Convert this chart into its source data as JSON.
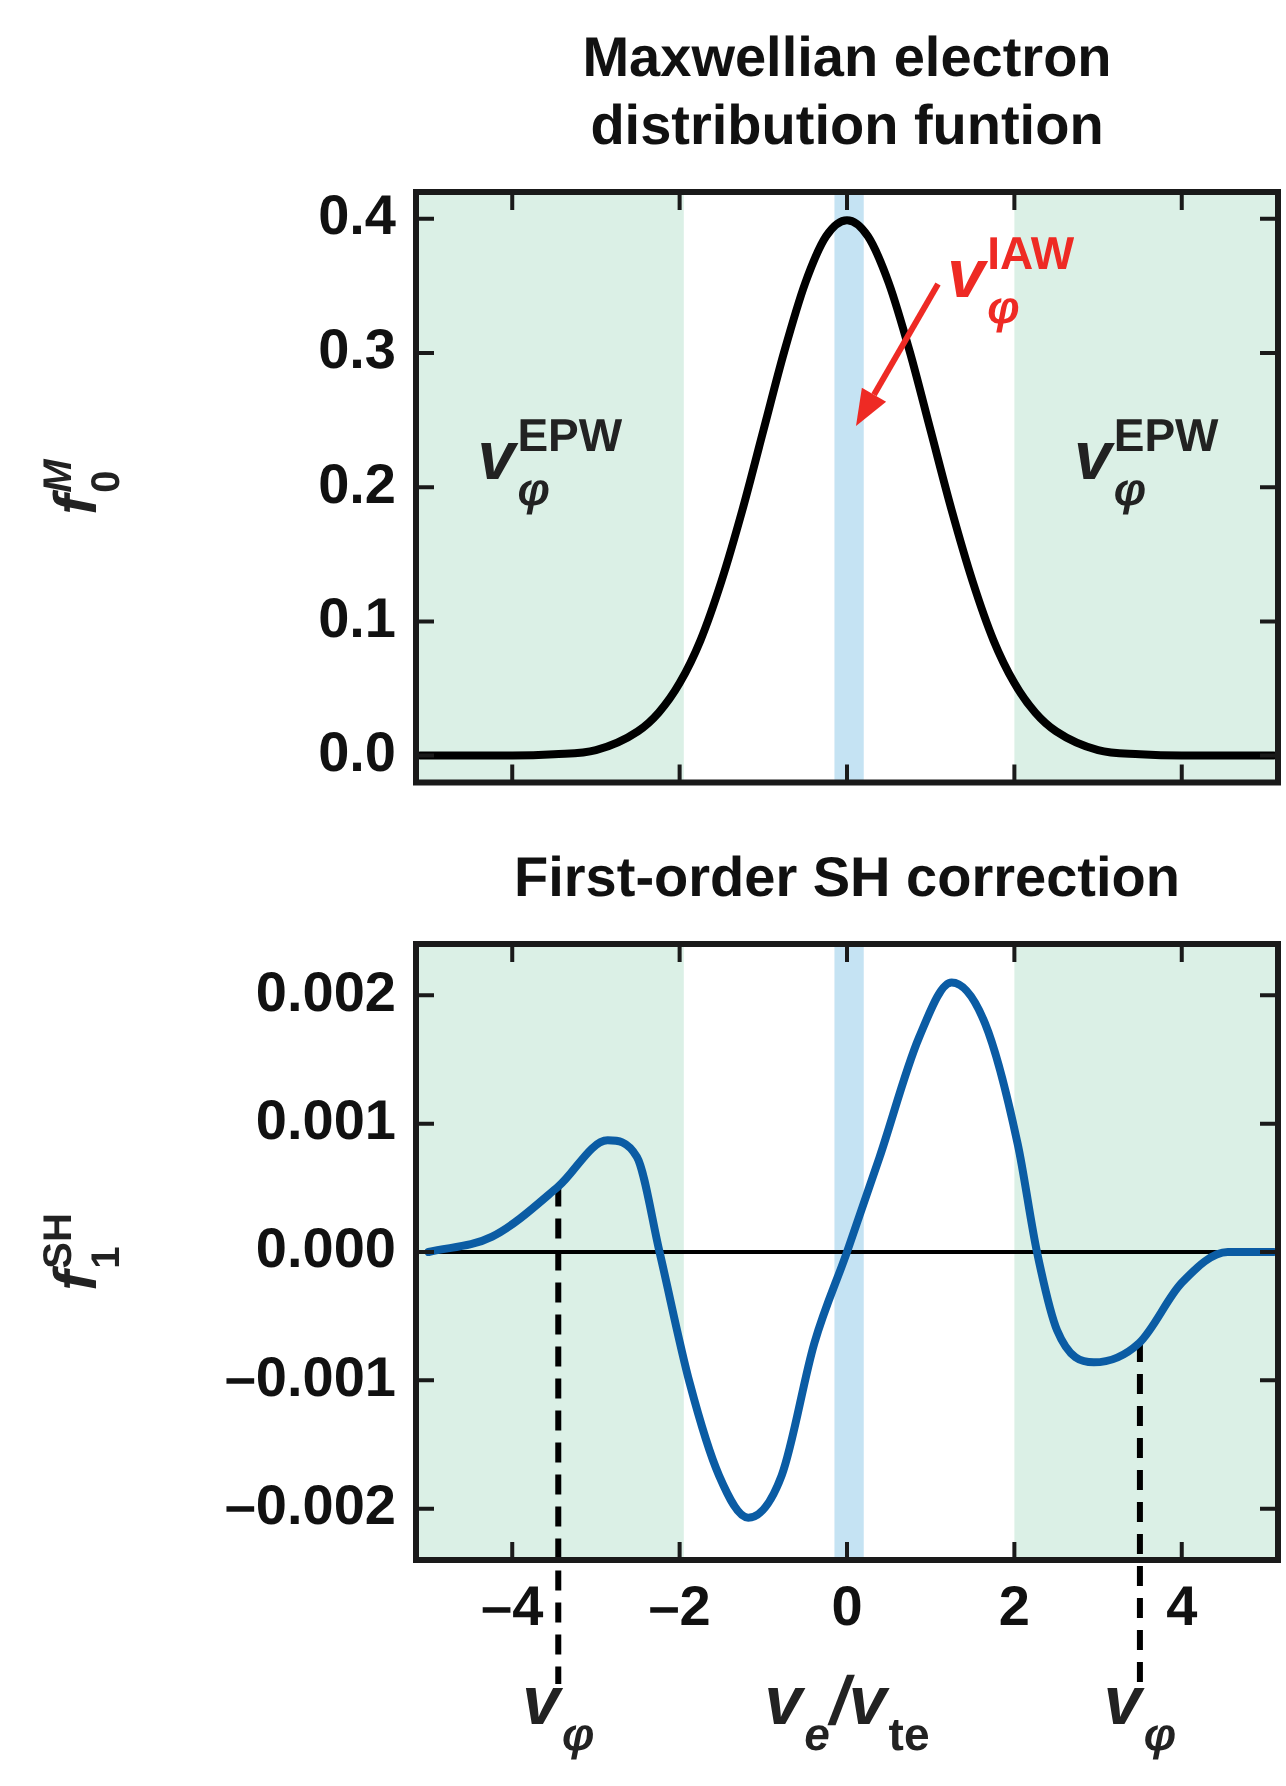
{
  "chart_data": [
    {
      "type": "line",
      "title": "Maxwellian electron distribution funtion",
      "ylabel": "f$_{0}$$^{M}$",
      "x": [
        -5.1,
        -4.5,
        -4,
        -3.5,
        -3,
        -2.5,
        -2.25,
        -2,
        -1.75,
        -1.5,
        -1.25,
        -1,
        -0.75,
        -0.5,
        -0.25,
        0,
        0.25,
        0.5,
        0.75,
        1,
        1.25,
        1.5,
        1.75,
        2,
        2.25,
        2.5,
        3,
        3.5,
        4,
        4.5,
        5.1
      ],
      "series": [
        {
          "color": "#000000",
          "values": [
            0,
            0,
            0,
            0.001,
            0.004,
            0.018,
            0.032,
            0.054,
            0.086,
            0.13,
            0.183,
            0.242,
            0.301,
            0.352,
            0.387,
            0.399,
            0.387,
            0.352,
            0.301,
            0.242,
            0.183,
            0.13,
            0.086,
            0.054,
            0.032,
            0.018,
            0.004,
            0.001,
            0,
            0,
            0
          ]
        }
      ],
      "xlim": [
        -5.15,
        5.15
      ],
      "ylim": [
        -0.02,
        0.42
      ],
      "xticks": [
        -4,
        -2,
        0,
        2,
        4
      ],
      "yticks": [
        {
          "value": 0,
          "label": "0.0"
        },
        0.1,
        0.2,
        0.3,
        0.4
      ],
      "tick_labels": "y",
      "bands": [
        {
          "axis": "x",
          "from": -5.15,
          "to": -1.95,
          "label": "v$_{φ}$$^{EPW}$",
          "color": "#dbf0e6"
        },
        {
          "axis": "x",
          "from": 2.0,
          "to": 5.15,
          "label": "v$_{φ}$$^{EPW}$",
          "color": "#dbf0e6"
        },
        {
          "axis": "x",
          "from": -0.15,
          "to": 0.2,
          "color": "#c5e3f3"
        }
      ],
      "annotations": [
        {
          "text": "v$_{φ}$$^{IAW}$",
          "x": 0.1,
          "y": 0.246
        }
      ]
    },
    {
      "type": "line",
      "title": "First-order SH correction",
      "xlabel": "v$_{e}$/v$_{te}$",
      "ylabel": "f$_{1}$$^{SH}$",
      "x": [
        -5.0,
        -4.24,
        -3.45,
        -2.86,
        -2.51,
        -2.24,
        -1.88,
        -1.53,
        -1.18,
        -0.78,
        -0.39,
        0,
        0.39,
        0.86,
        1.25,
        1.65,
        2.04,
        2.27,
        2.51,
        2.95,
        3.49,
        4.0,
        4.55,
        5.1
      ],
      "series": [
        {
          "color": "#0b5ca4",
          "values": [
            0,
            0.00012,
            0.00051,
            0.00087,
            0.00074,
            0,
            -0.00102,
            -0.00174,
            -0.00207,
            -0.00174,
            -0.00071,
            0,
            0.00074,
            0.00167,
            0.0021,
            0.00178,
            0.00084,
            0,
            -0.00061,
            -0.00086,
            -0.00071,
            -0.00024,
            0,
            0
          ]
        }
      ],
      "xlim": [
        -5.15,
        5.15
      ],
      "ylim": [
        -0.0024,
        0.0024
      ],
      "xticks": [
        {
          "value": -4,
          "label": "–4"
        },
        {
          "value": -2,
          "label": "–2"
        },
        0,
        2,
        4
      ],
      "yticks": [
        {
          "value": -0.002,
          "label": "–0.002"
        },
        {
          "value": -0.001,
          "label": "–0.001"
        },
        {
          "value": 0,
          "label": "0.000"
        },
        0.001,
        0.002
      ],
      "bands": [
        {
          "axis": "x",
          "from": -5.15,
          "to": -1.95,
          "color": "#dbf0e6"
        },
        {
          "axis": "x",
          "from": 2.0,
          "to": 5.15,
          "color": "#dbf0e6"
        },
        {
          "axis": "x",
          "from": -0.15,
          "to": 0.2,
          "color": "#c5e3f3"
        }
      ],
      "ref_lines": [
        {
          "axis": "x",
          "value": -3.45,
          "label": "v$_{φ}$",
          "color": "#000000",
          "line_style": "dashed"
        },
        {
          "axis": "x",
          "value": 3.5,
          "label": "v$_{φ}$",
          "color": "#000000",
          "line_style": "dashed"
        },
        {
          "axis": "y",
          "value": 0,
          "color": "#000000",
          "line_style": "solid"
        }
      ]
    }
  ]
}
